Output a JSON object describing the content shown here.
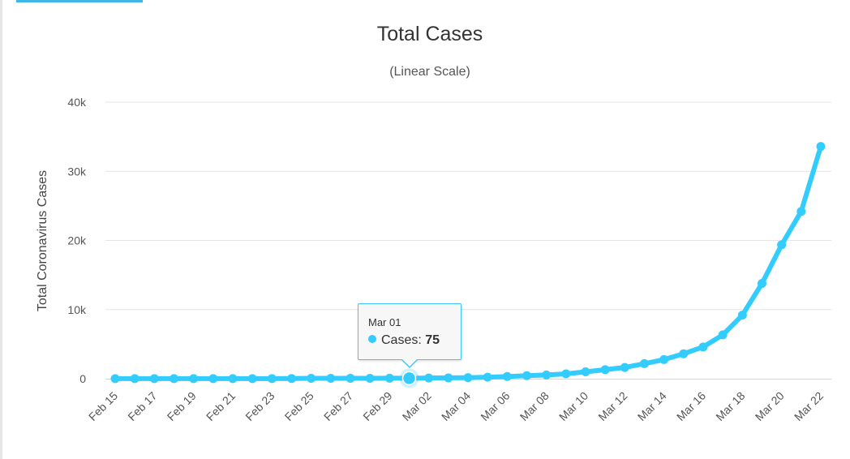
{
  "chart_data": {
    "type": "line",
    "title": "Total Cases",
    "subtitle": "(Linear Scale)",
    "ylabel": "Total Coronavirus Cases",
    "xlabel": "",
    "ylim": [
      0,
      40000
    ],
    "yticks": [
      0,
      10000,
      20000,
      30000,
      40000
    ],
    "ytick_labels": [
      "0",
      "10k",
      "20k",
      "30k",
      "40k"
    ],
    "grid": true,
    "series_color": "#33ccff",
    "categories": [
      "Feb 15",
      "Feb 16",
      "Feb 17",
      "Feb 18",
      "Feb 19",
      "Feb 20",
      "Feb 21",
      "Feb 22",
      "Feb 23",
      "Feb 24",
      "Feb 25",
      "Feb 26",
      "Feb 27",
      "Feb 28",
      "Feb 29",
      "Mar 01",
      "Mar 02",
      "Mar 03",
      "Mar 04",
      "Mar 05",
      "Mar 06",
      "Mar 07",
      "Mar 08",
      "Mar 09",
      "Mar 10",
      "Mar 11",
      "Mar 12",
      "Mar 13",
      "Mar 14",
      "Mar 15",
      "Mar 16",
      "Mar 17",
      "Mar 18",
      "Mar 19",
      "Mar 20",
      "Mar 21",
      "Mar 22"
    ],
    "xtick_labels": [
      "Feb 15",
      "Feb 17",
      "Feb 19",
      "Feb 21",
      "Feb 23",
      "Feb 25",
      "Feb 27",
      "Feb 29",
      "Mar 02",
      "Mar 04",
      "Mar 06",
      "Mar 08",
      "Mar 10",
      "Mar 12",
      "Mar 14",
      "Mar 16",
      "Mar 18",
      "Mar 20",
      "Mar 22"
    ],
    "series": [
      {
        "name": "Cases",
        "values": [
          15,
          15,
          15,
          15,
          15,
          15,
          15,
          15,
          15,
          35,
          53,
          57,
          60,
          62,
          70,
          75,
          100,
          124,
          158,
          221,
          319,
          435,
          541,
          704,
          994,
          1301,
          1630,
          2183,
          2770,
          3613,
          4596,
          6344,
          9197,
          13779,
          19367,
          24192,
          33592
        ]
      }
    ],
    "tooltip": {
      "date": "Mar 01",
      "series": "Cases",
      "value": "75"
    }
  }
}
